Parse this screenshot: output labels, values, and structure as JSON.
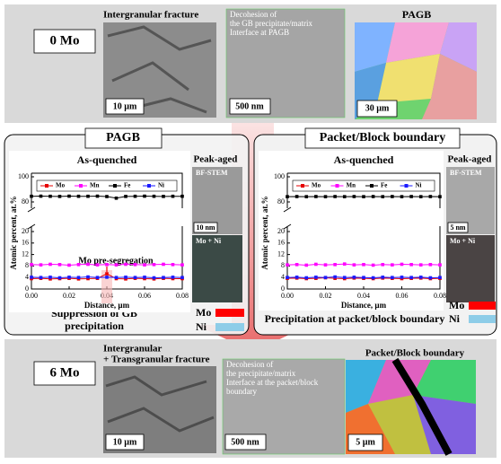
{
  "top": {
    "label": "0 Mo",
    "fracture": "Intergranular fracture",
    "decohesion": [
      "Decohesion of",
      "the GB precipitate/matrix",
      "Interface at PAGB"
    ],
    "map": "PAGB",
    "scale_bars": [
      "10 µm",
      "500 nm",
      "30 µm"
    ]
  },
  "left_panel": {
    "title": "PAGB",
    "peak_aged": "Peak-aged",
    "stem": "BF-STEM",
    "stem_scale": "10 nm",
    "eds": "Mo + Ni",
    "eds_legend": [
      "Mo",
      "Ni"
    ],
    "conclusion": [
      "Suppression of GB",
      "precipitation"
    ]
  },
  "right_panel": {
    "title": "Packet/Block boundary",
    "peak_aged": "Peak-aged",
    "stem": "BF-STEM",
    "stem_scale": "5 nm",
    "eds": "Mo + Ni",
    "eds_legend": [
      "Mo",
      "Ni"
    ],
    "conclusion": [
      "Precipitation at packet/block boundary"
    ]
  },
  "bottom": {
    "label": "6 Mo",
    "fracture": [
      "Intergranular",
      "+ Transgranular fracture"
    ],
    "decohesion": [
      "Decohesion of",
      "the precipitate/matrix",
      "Interface at the packet/block",
      "boundary"
    ],
    "map": "Packet/Block boundary",
    "scale_bars": [
      "10 µm",
      "500 nm",
      "5 µm"
    ]
  },
  "chart_data": [
    {
      "type": "line",
      "title": "As-quenched",
      "x_label": "Distance, µm",
      "y_label": "Atomic percent, at.%",
      "legend": "top",
      "annotation": "Mo pre-segregation",
      "x": [
        0,
        0.005,
        0.01,
        0.015,
        0.02,
        0.025,
        0.03,
        0.035,
        0.04,
        0.045,
        0.05,
        0.055,
        0.06,
        0.065,
        0.07,
        0.075,
        0.08
      ],
      "xlim": [
        0,
        0.08
      ],
      "xticks": [
        {
          "value": 0,
          "label": "0.00"
        },
        {
          "value": 0.02,
          "label": "0.02"
        },
        {
          "value": 0.04,
          "label": "0.04"
        },
        {
          "value": 0.06,
          "label": "0.06"
        },
        {
          "value": 0.08,
          "label": "0.08"
        }
      ],
      "ylim": [
        0,
        20
      ],
      "yticks": [
        0,
        4,
        8,
        12,
        16,
        20
      ],
      "ylim_upper": [
        75,
        100
      ],
      "yticks_upper": [
        80,
        100
      ],
      "series": [
        {
          "name": "Mo",
          "color": "#e60000",
          "values": [
            3.6,
            3.7,
            3.5,
            3.6,
            3.7,
            3.5,
            3.6,
            3.7,
            5.3,
            3.6,
            3.5,
            3.7,
            3.6,
            3.5,
            3.7,
            3.6,
            3.6
          ]
        },
        {
          "name": "Mn",
          "color": "#ff00ff",
          "values": [
            8.5,
            8.4,
            8.6,
            8.5,
            8.3,
            8.5,
            8.6,
            8.4,
            8.5,
            8.4,
            8.6,
            8.5,
            8.4,
            8.5,
            8.6,
            8.5,
            8.4
          ]
        },
        {
          "name": "Fe",
          "color": "#000000",
          "values": [
            84.5,
            84.6,
            84.5,
            84.4,
            84.6,
            84.5,
            84.5,
            84.6,
            84.3,
            83.0,
            84.4,
            84.5,
            84.6,
            84.5,
            84.4,
            84.5,
            84.5
          ]
        },
        {
          "name": "Ni",
          "color": "#1a1aff",
          "values": [
            4.1,
            4.0,
            4.1,
            3.9,
            4.1,
            4.0,
            4.2,
            4.0,
            4.1,
            4.0,
            4.1,
            4.0,
            4.1,
            3.9,
            4.0,
            4.1,
            4.0
          ]
        }
      ]
    },
    {
      "type": "line",
      "title": "As-quenched",
      "x_label": "Distance, µm",
      "y_label": "Atomic percent, at.%",
      "legend": "top",
      "x": [
        0,
        0.005,
        0.01,
        0.015,
        0.02,
        0.025,
        0.03,
        0.035,
        0.04,
        0.045,
        0.05,
        0.055,
        0.06,
        0.065,
        0.07,
        0.075,
        0.08
      ],
      "xlim": [
        0,
        0.08
      ],
      "xticks": [
        {
          "value": 0,
          "label": "0.00"
        },
        {
          "value": 0.02,
          "label": "0.02"
        },
        {
          "value": 0.04,
          "label": "0.04"
        },
        {
          "value": 0.06,
          "label": "0.06"
        },
        {
          "value": 0.08,
          "label": "0.08"
        }
      ],
      "ylim": [
        0,
        20
      ],
      "yticks": [
        0,
        4,
        8,
        12,
        16,
        20
      ],
      "ylim_upper": [
        75,
        100
      ],
      "yticks_upper": [
        80,
        100
      ],
      "series": [
        {
          "name": "Mo",
          "color": "#e60000",
          "values": [
            3.7,
            3.8,
            3.6,
            3.7,
            3.9,
            3.7,
            3.6,
            3.8,
            3.7,
            3.6,
            3.8,
            3.7,
            3.6,
            3.7,
            3.8,
            3.6,
            3.7
          ]
        },
        {
          "name": "Mn",
          "color": "#ff00ff",
          "values": [
            8.4,
            8.5,
            8.3,
            8.6,
            8.4,
            8.5,
            8.7,
            8.4,
            8.5,
            8.3,
            8.5,
            8.4,
            8.6,
            8.5,
            8.4,
            8.5,
            8.4
          ]
        },
        {
          "name": "Fe",
          "color": "#000000",
          "values": [
            84.2,
            84.3,
            84.2,
            84.3,
            84.2,
            84.3,
            84.2,
            84.3,
            84.2,
            84.3,
            84.2,
            84.3,
            84.2,
            84.3,
            84.2,
            84.3,
            84.2
          ]
        },
        {
          "name": "Ni",
          "color": "#1a1aff",
          "values": [
            4.0,
            4.1,
            3.9,
            4.1,
            4.0,
            4.2,
            4.0,
            4.1,
            4.0,
            3.9,
            4.1,
            4.0,
            4.1,
            4.0,
            4.1,
            3.9,
            4.0
          ]
        }
      ]
    }
  ]
}
